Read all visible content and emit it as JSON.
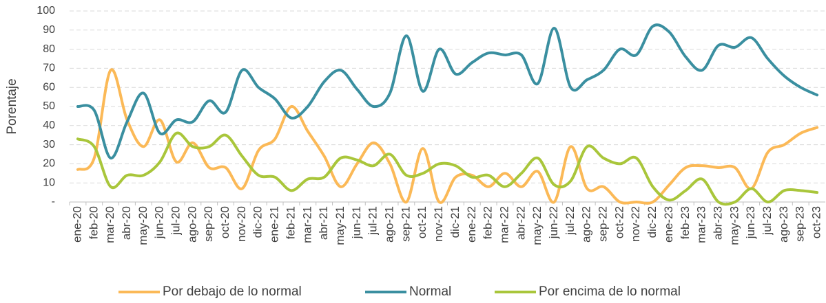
{
  "chart_data": {
    "type": "line",
    "y_label": "Porentaje",
    "categories": [
      "ene-20",
      "feb-20",
      "mar-20",
      "abr-20",
      "may-20",
      "jun-20",
      "jul-20",
      "ago-20",
      "sep-20",
      "oct-20",
      "nov-20",
      "dic-20",
      "ene-21",
      "feb-21",
      "mar-21",
      "abr-21",
      "may-21",
      "jun-21",
      "jul-21",
      "ago-21",
      "sep-21",
      "oct-21",
      "nov-21",
      "dic-21",
      "ene-22",
      "feb-22",
      "mar-22",
      "abr-22",
      "may-22",
      "jun-22",
      "jul-22",
      "ago-22",
      "sep-22",
      "oct-22",
      "nov-22",
      "dic-22",
      "ene-23",
      "feb-23",
      "mar-23",
      "abr-23",
      "may-23",
      "jun-23",
      "jul-23",
      "ago-23",
      "sep-23",
      "oct-23"
    ],
    "series": [
      {
        "name": "Por debajo de lo normal",
        "color": "#fbb957",
        "values": [
          17,
          23,
          69,
          43,
          29,
          43,
          21,
          31,
          18,
          18,
          7,
          27,
          33,
          50,
          37,
          24,
          8,
          20,
          31,
          20,
          0,
          28,
          0,
          13,
          14,
          8,
          15,
          8,
          16,
          0,
          29,
          7,
          8,
          0,
          0,
          0,
          9,
          18,
          19,
          18,
          18,
          7,
          26,
          30,
          36,
          39
        ]
      },
      {
        "name": "Normal",
        "color": "#3a8fa0",
        "values": [
          50,
          48,
          23,
          42,
          57,
          36,
          43,
          42,
          53,
          47,
          69,
          60,
          54,
          44,
          50,
          63,
          69,
          59,
          50,
          57,
          87,
          58,
          80,
          67,
          73,
          78,
          77,
          77,
          62,
          91,
          60,
          64,
          69,
          80,
          77,
          92,
          89,
          76,
          69,
          82,
          81,
          86,
          75,
          66,
          60,
          56
        ]
      },
      {
        "name": "Por encima de lo normal",
        "color": "#a9c63b",
        "values": [
          33,
          29,
          8,
          14,
          14,
          21,
          36,
          29,
          29,
          35,
          24,
          14,
          13,
          6,
          12,
          13,
          23,
          22,
          19,
          25,
          14,
          15,
          20,
          19,
          13,
          14,
          8,
          15,
          23,
          9,
          11,
          29,
          23,
          20,
          23,
          8,
          1,
          6,
          12,
          0,
          0,
          7,
          0,
          6,
          6,
          5
        ]
      }
    ],
    "ylim": [
      0,
      100
    ],
    "yticks": [
      {
        "value": 0,
        "label": "-"
      },
      10,
      20,
      30,
      40,
      50,
      60,
      70,
      80,
      90,
      100
    ],
    "grid": true,
    "legend": "bottom"
  }
}
